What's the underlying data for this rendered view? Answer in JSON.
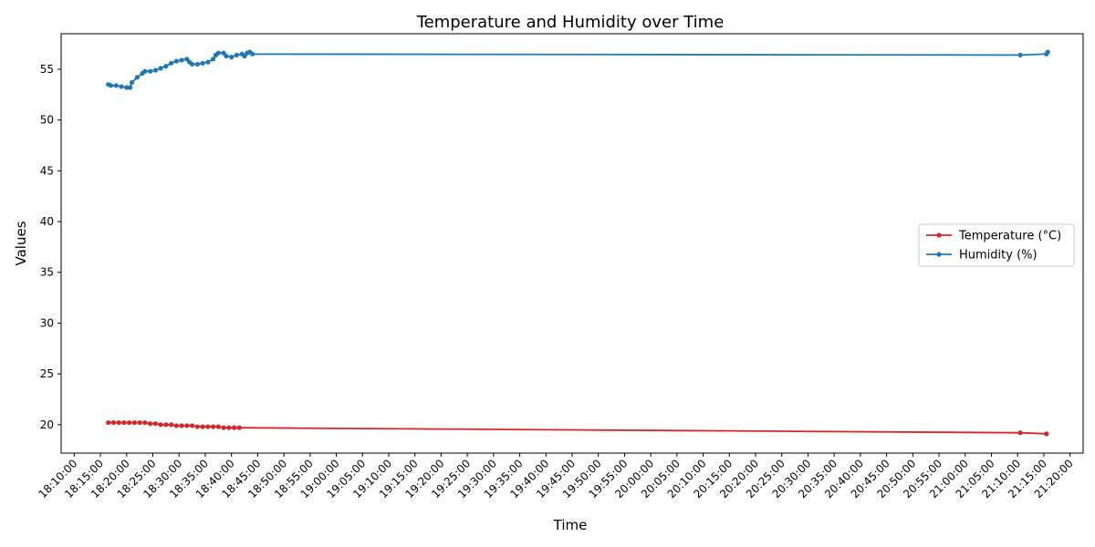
{
  "chart_data": {
    "type": "line",
    "title": "Temperature and Humidity over Time",
    "xlabel": "Time",
    "ylabel": "Values",
    "xlim": [
      "18:10:00",
      "21:20:00"
    ],
    "ylim": [
      17.2,
      58.5
    ],
    "y_ticks": [
      20,
      25,
      30,
      35,
      40,
      45,
      50,
      55
    ],
    "x_ticks": [
      "18:10:00",
      "18:15:00",
      "18:20:00",
      "18:25:00",
      "18:30:00",
      "18:35:00",
      "18:40:00",
      "18:45:00",
      "18:50:00",
      "18:55:00",
      "19:00:00",
      "19:05:00",
      "19:10:00",
      "19:15:00",
      "19:20:00",
      "19:25:00",
      "19:30:00",
      "19:35:00",
      "19:40:00",
      "19:45:00",
      "19:50:00",
      "19:55:00",
      "20:00:00",
      "20:05:00",
      "20:10:00",
      "20:15:00",
      "20:20:00",
      "20:25:00",
      "20:30:00",
      "20:35:00",
      "20:40:00",
      "20:45:00",
      "20:50:00",
      "20:55:00",
      "21:00:00",
      "21:05:00",
      "21:10:00",
      "21:15:00",
      "21:20:00"
    ],
    "grid": false,
    "legend_position": "center-right",
    "series": [
      {
        "name": "Temperature (°C)",
        "color": "#d62728",
        "points": [
          [
            "18:16:30",
            20.2
          ],
          [
            "18:17:30",
            20.2
          ],
          [
            "18:18:30",
            20.2
          ],
          [
            "18:19:30",
            20.2
          ],
          [
            "18:20:30",
            20.2
          ],
          [
            "18:21:30",
            20.2
          ],
          [
            "18:22:30",
            20.2
          ],
          [
            "18:23:30",
            20.2
          ],
          [
            "18:24:30",
            20.1
          ],
          [
            "18:25:30",
            20.1
          ],
          [
            "18:26:30",
            20.0
          ],
          [
            "18:27:30",
            20.0
          ],
          [
            "18:28:30",
            20.0
          ],
          [
            "18:29:30",
            19.9
          ],
          [
            "18:30:30",
            19.9
          ],
          [
            "18:31:30",
            19.9
          ],
          [
            "18:32:30",
            19.9
          ],
          [
            "18:33:30",
            19.8
          ],
          [
            "18:34:30",
            19.8
          ],
          [
            "18:35:30",
            19.8
          ],
          [
            "18:36:30",
            19.8
          ],
          [
            "18:37:30",
            19.8
          ],
          [
            "18:38:30",
            19.7
          ],
          [
            "18:39:30",
            19.7
          ],
          [
            "18:40:30",
            19.7
          ],
          [
            "18:41:30",
            19.7
          ],
          [
            "21:10:30",
            19.2
          ],
          [
            "21:15:30",
            19.1
          ]
        ]
      },
      {
        "name": "Humidity (%)",
        "color": "#1f77b4",
        "points": [
          [
            "18:16:30",
            53.5
          ],
          [
            "18:17:00",
            53.4
          ],
          [
            "18:18:00",
            53.4
          ],
          [
            "18:19:00",
            53.3
          ],
          [
            "18:20:00",
            53.2
          ],
          [
            "18:20:40",
            53.2
          ],
          [
            "18:21:00",
            53.7
          ],
          [
            "18:22:00",
            54.2
          ],
          [
            "18:23:00",
            54.6
          ],
          [
            "18:23:30",
            54.8
          ],
          [
            "18:24:30",
            54.8
          ],
          [
            "18:25:30",
            54.9
          ],
          [
            "18:26:30",
            55.1
          ],
          [
            "18:27:30",
            55.3
          ],
          [
            "18:28:30",
            55.6
          ],
          [
            "18:29:30",
            55.8
          ],
          [
            "18:30:30",
            55.9
          ],
          [
            "18:31:30",
            56.0
          ],
          [
            "18:32:00",
            55.7
          ],
          [
            "18:32:30",
            55.5
          ],
          [
            "18:33:30",
            55.5
          ],
          [
            "18:34:30",
            55.6
          ],
          [
            "18:35:30",
            55.7
          ],
          [
            "18:36:30",
            56.0
          ],
          [
            "18:37:00",
            56.4
          ],
          [
            "18:37:30",
            56.6
          ],
          [
            "18:38:30",
            56.6
          ],
          [
            "18:39:00",
            56.3
          ],
          [
            "18:40:00",
            56.2
          ],
          [
            "18:41:00",
            56.4
          ],
          [
            "18:42:00",
            56.5
          ],
          [
            "18:42:30",
            56.3
          ],
          [
            "18:43:00",
            56.6
          ],
          [
            "18:43:30",
            56.7
          ],
          [
            "18:44:00",
            56.5
          ],
          [
            "21:10:30",
            56.4
          ],
          [
            "21:15:30",
            56.5
          ],
          [
            "21:15:45",
            56.7
          ]
        ]
      }
    ]
  }
}
